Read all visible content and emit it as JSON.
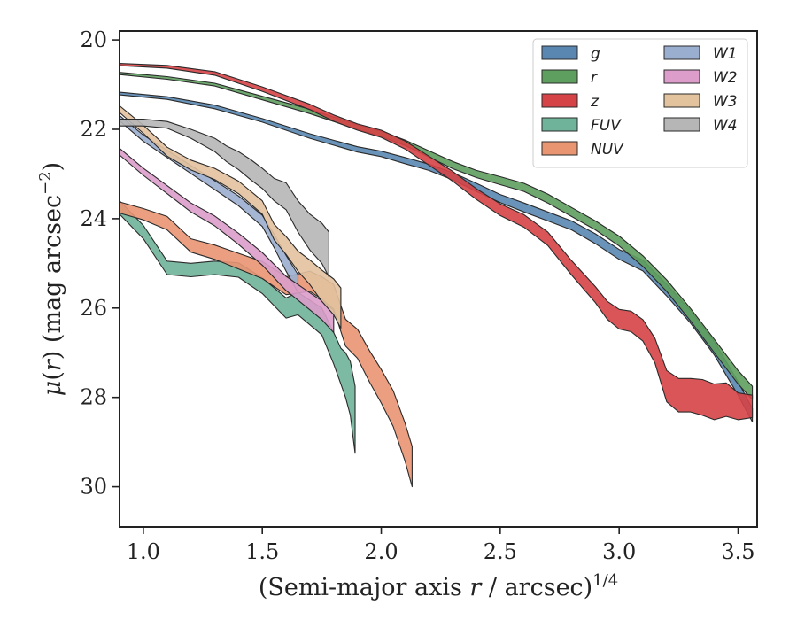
{
  "chart_data": {
    "type": "area",
    "xlabel": "(Semi-major axis r / arcsec)^(1/4)",
    "ylabel": "μ(r) (mag arcsec^−2)",
    "xlim": [
      0.9,
      3.58
    ],
    "ylim": [
      30.9,
      19.8
    ],
    "y_inverted": true,
    "xticks": [
      1.0,
      1.5,
      2.0,
      2.5,
      3.0,
      3.5
    ],
    "yticks": [
      20,
      22,
      24,
      26,
      28,
      30
    ],
    "grid": false,
    "legend_position": "top-right",
    "legend_columns": 2,
    "series": [
      {
        "name": "g",
        "color": "#5a87b2",
        "x": [
          0.9,
          1.1,
          1.3,
          1.5,
          1.7,
          1.9,
          2.0,
          2.1,
          2.2,
          2.3,
          2.4,
          2.5,
          2.6,
          2.7,
          2.8,
          2.9,
          3.0,
          3.1,
          3.2,
          3.3,
          3.4,
          3.5,
          3.56
        ],
        "y": [
          21.2,
          21.3,
          21.5,
          21.8,
          22.15,
          22.45,
          22.55,
          22.7,
          22.85,
          23.05,
          23.3,
          23.55,
          23.75,
          23.95,
          24.15,
          24.45,
          24.8,
          25.05,
          25.6,
          26.2,
          26.9,
          27.8,
          28.4
        ],
        "w": [
          0.06,
          0.06,
          0.08,
          0.08,
          0.1,
          0.12,
          0.12,
          0.14,
          0.14,
          0.16,
          0.18,
          0.18,
          0.2,
          0.2,
          0.2,
          0.22,
          0.22,
          0.24,
          0.26,
          0.28,
          0.3,
          0.3,
          0.3
        ]
      },
      {
        "name": "r",
        "color": "#5e9e5e",
        "x": [
          0.9,
          1.1,
          1.3,
          1.5,
          1.7,
          1.9,
          2.0,
          2.1,
          2.2,
          2.3,
          2.4,
          2.5,
          2.6,
          2.7,
          2.8,
          2.9,
          3.0,
          3.1,
          3.2,
          3.3,
          3.4,
          3.5,
          3.56
        ],
        "y": [
          20.75,
          20.85,
          21.0,
          21.3,
          21.6,
          21.95,
          22.1,
          22.3,
          22.55,
          22.8,
          23.0,
          23.15,
          23.3,
          23.55,
          23.85,
          24.15,
          24.5,
          24.95,
          25.5,
          26.15,
          26.85,
          27.55,
          27.9
        ],
        "w": [
          0.05,
          0.06,
          0.06,
          0.08,
          0.1,
          0.1,
          0.12,
          0.12,
          0.14,
          0.16,
          0.16,
          0.18,
          0.18,
          0.2,
          0.2,
          0.2,
          0.22,
          0.24,
          0.26,
          0.28,
          0.3,
          0.3,
          0.3
        ]
      },
      {
        "name": "z",
        "color": "#d54346",
        "x": [
          0.9,
          1.1,
          1.3,
          1.5,
          1.7,
          1.8,
          1.9,
          2.0,
          2.1,
          2.2,
          2.3,
          2.4,
          2.5,
          2.6,
          2.7,
          2.8,
          2.9,
          2.95,
          3.0,
          3.05,
          3.1,
          3.15,
          3.2,
          3.25,
          3.3,
          3.35,
          3.4,
          3.45,
          3.5,
          3.56
        ],
        "y": [
          20.55,
          20.6,
          20.75,
          21.1,
          21.5,
          21.75,
          21.95,
          22.1,
          22.35,
          22.7,
          23.05,
          23.45,
          23.8,
          24.05,
          24.45,
          25.1,
          25.7,
          26.05,
          26.25,
          26.3,
          26.5,
          26.95,
          27.75,
          27.95,
          27.95,
          28.0,
          28.1,
          28.05,
          28.2,
          28.2
        ],
        "w": [
          0.05,
          0.06,
          0.08,
          0.1,
          0.12,
          0.14,
          0.14,
          0.16,
          0.18,
          0.2,
          0.22,
          0.24,
          0.26,
          0.28,
          0.3,
          0.32,
          0.36,
          0.4,
          0.44,
          0.46,
          0.48,
          0.55,
          0.7,
          0.75,
          0.75,
          0.8,
          0.8,
          0.75,
          0.6,
          0.5
        ]
      },
      {
        "name": "FUV",
        "color": "#6fb39a",
        "x": [
          0.9,
          1.0,
          1.1,
          1.2,
          1.3,
          1.4,
          1.5,
          1.55,
          1.6,
          1.65,
          1.7,
          1.75,
          1.8,
          1.83,
          1.85,
          1.87,
          1.89
        ],
        "y": [
          23.75,
          24.3,
          25.1,
          25.15,
          25.1,
          25.15,
          25.5,
          25.75,
          26.0,
          25.9,
          26.1,
          26.3,
          26.9,
          27.3,
          27.5,
          27.8,
          28.5
        ],
        "w": [
          0.3,
          0.3,
          0.3,
          0.3,
          0.3,
          0.32,
          0.35,
          0.4,
          0.45,
          0.5,
          0.55,
          0.6,
          0.7,
          0.8,
          1.0,
          1.2,
          1.5
        ]
      },
      {
        "name": "NUV",
        "color": "#ea9572",
        "x": [
          0.9,
          1.0,
          1.1,
          1.2,
          1.3,
          1.4,
          1.5,
          1.6,
          1.7,
          1.75,
          1.8,
          1.85,
          1.9,
          1.95,
          2.0,
          2.05,
          2.1,
          2.13
        ],
        "y": [
          23.75,
          23.9,
          24.1,
          24.6,
          24.75,
          24.95,
          25.15,
          25.5,
          25.4,
          25.55,
          25.75,
          26.55,
          26.8,
          27.3,
          27.75,
          28.25,
          29.0,
          29.55
        ],
        "w": [
          0.25,
          0.25,
          0.3,
          0.3,
          0.32,
          0.35,
          0.38,
          0.4,
          0.45,
          0.5,
          0.55,
          0.6,
          0.65,
          0.7,
          0.75,
          0.8,
          0.85,
          0.9
        ]
      },
      {
        "name": "W1",
        "color": "#9aaecf",
        "x": [
          0.9,
          1.0,
          1.1,
          1.2,
          1.3,
          1.4,
          1.5,
          1.55,
          1.6,
          1.65
        ],
        "y": [
          21.75,
          22.2,
          22.55,
          22.9,
          23.25,
          23.6,
          24.05,
          24.5,
          25.0,
          25.45
        ],
        "w": [
          0.12,
          0.14,
          0.16,
          0.18,
          0.2,
          0.22,
          0.25,
          0.3,
          0.35,
          0.4
        ]
      },
      {
        "name": "W2",
        "color": "#dc9dca",
        "x": [
          0.9,
          1.0,
          1.1,
          1.2,
          1.3,
          1.4,
          1.5,
          1.6,
          1.7,
          1.75,
          1.8
        ],
        "y": [
          22.5,
          22.95,
          23.35,
          23.75,
          24.05,
          24.45,
          24.9,
          25.45,
          25.85,
          26.05,
          26.3
        ],
        "w": [
          0.15,
          0.16,
          0.18,
          0.2,
          0.22,
          0.25,
          0.28,
          0.32,
          0.38,
          0.42,
          0.5
        ]
      },
      {
        "name": "W3",
        "color": "#e3c29e",
        "x": [
          0.9,
          1.0,
          1.1,
          1.2,
          1.3,
          1.4,
          1.5,
          1.55,
          1.6,
          1.65,
          1.7,
          1.75,
          1.8,
          1.83
        ],
        "y": [
          21.55,
          22.0,
          22.5,
          22.8,
          23.0,
          23.3,
          23.75,
          24.3,
          24.6,
          24.95,
          25.2,
          25.5,
          25.75,
          26.0
        ],
        "w": [
          0.15,
          0.18,
          0.2,
          0.22,
          0.25,
          0.28,
          0.3,
          0.35,
          0.4,
          0.45,
          0.55,
          0.7,
          0.8,
          0.9
        ]
      },
      {
        "name": "W4",
        "color": "#b6b6b6",
        "x": [
          0.9,
          1.0,
          1.1,
          1.2,
          1.3,
          1.35,
          1.4,
          1.45,
          1.5,
          1.55,
          1.6,
          1.65,
          1.7,
          1.75,
          1.78
        ],
        "y": [
          21.85,
          21.85,
          21.9,
          22.1,
          22.35,
          22.55,
          22.7,
          22.9,
          23.1,
          23.35,
          23.5,
          23.95,
          24.3,
          24.55,
          24.8
        ],
        "w": [
          0.15,
          0.15,
          0.15,
          0.2,
          0.3,
          0.35,
          0.4,
          0.45,
          0.45,
          0.5,
          0.6,
          0.7,
          0.8,
          0.9,
          1.0
        ]
      }
    ]
  },
  "legend": {
    "col1": [
      {
        "label": "g",
        "color": "#5a87b2"
      },
      {
        "label": "r",
        "color": "#5e9e5e"
      },
      {
        "label": "z",
        "color": "#d54346"
      },
      {
        "label": "FUV",
        "color": "#6fb39a"
      },
      {
        "label": "NUV",
        "color": "#ea9572"
      }
    ],
    "col2": [
      {
        "label": "W1",
        "color": "#9aaecf"
      },
      {
        "label": "W2",
        "color": "#dc9dca"
      },
      {
        "label": "W3",
        "color": "#e3c29e"
      },
      {
        "label": "W4",
        "color": "#b6b6b6"
      }
    ]
  }
}
